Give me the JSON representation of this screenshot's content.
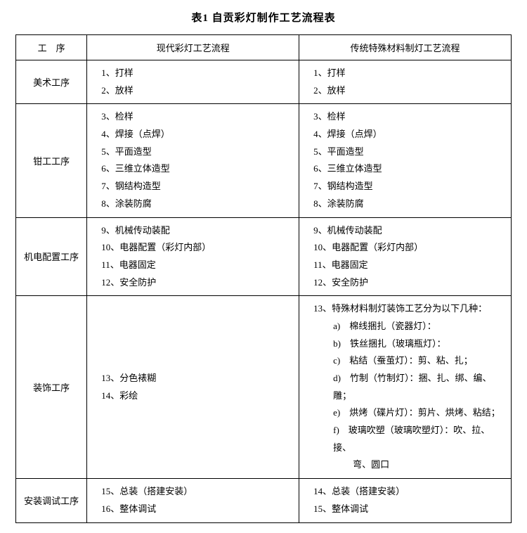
{
  "title": "表1   自贡彩灯制作工艺流程表",
  "headers": {
    "col0": "工　序",
    "col1": "现代彩灯工艺流程",
    "col2": "传统特殊材料制灯工艺流程"
  },
  "rows": [
    {
      "name": "美术工序",
      "modern": [
        "1、打样",
        "2、放样"
      ],
      "trad": [
        "1、打样",
        "2、放样"
      ]
    },
    {
      "name": "钳工工序",
      "modern": [
        "3、检样",
        "4、焊接（点焊）",
        "5、平面造型",
        "6、三维立体造型",
        "7、钢结构造型",
        "8、涂装防腐"
      ],
      "trad": [
        "3、检样",
        "4、焊接（点焊）",
        "5、平面造型",
        "6、三维立体造型",
        "7、钢结构造型",
        "8、涂装防腐"
      ]
    },
    {
      "name": "机电配置工序",
      "modern": [
        "9、机械传动装配",
        "10、电器配置（彩灯内部）",
        "11、电器固定",
        "12、安全防护"
      ],
      "trad": [
        "9、机械传动装配",
        "10、电器配置（彩灯内部）",
        "11、电器固定",
        "12、安全防护"
      ]
    },
    {
      "name": "装饰工序",
      "modern": [
        "13、分色裱糊",
        "14、彩绘"
      ],
      "trad_intro": "13、特殊材料制灯装饰工艺分为以下几种：",
      "trad_sub": [
        "a)　棉线捆扎（瓷器灯）：",
        "b)　铁丝捆扎（玻璃瓶灯）：",
        "c)　粘结（蚕茧灯）：剪、粘、扎；",
        "d)　竹制（竹制灯）：捆、扎、绑、编、雕；",
        "e)　烘烤（碟片灯）：剪片、烘烤、粘结；"
      ],
      "trad_sub_f": "f)　玻璃吹塑（玻璃吹塑灯）：吹、拉、接、",
      "trad_sub_f_cont": "弯、圆口"
    },
    {
      "name": "安装调试工序",
      "modern": [
        "15、总装（搭建安装）",
        "16、整体调试"
      ],
      "trad": [
        "14、总装（搭建安装）",
        "15、整体调试"
      ]
    }
  ]
}
